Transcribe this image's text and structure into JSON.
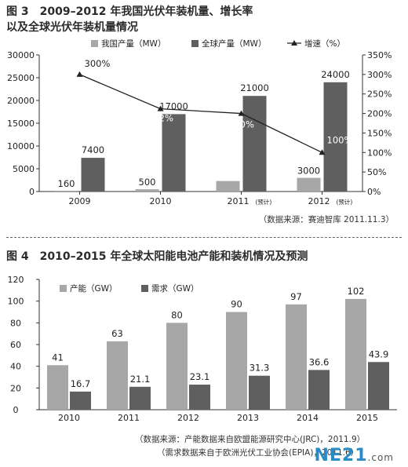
{
  "figure3": {
    "title_line1": "图 3　2009–2012 年我国光伏年装机量、增长率",
    "title_line2": "以及全球光伏年装机量情况",
    "source": "（数据来源：赛迪智库 2011.11.3）"
  },
  "figure4": {
    "title": "图 4　2010–2015 年全球太阳能电池产能和装机情况及预测",
    "source_line1": "（数据来源：产能数据来自欧盟能源研究中心(JRC)，2011.9）",
    "source_line2": "（需求数据来自于欧洲光伏工业协会(EPIA)，2011.6）"
  },
  "watermark": {
    "main": "NE21",
    "suffix": ".com"
  },
  "colors": {
    "light_bar": "#a7a7a7",
    "dark_bar": "#5f5f5f",
    "line": "#222222",
    "axis": "#333333"
  },
  "chart_data": [
    {
      "type": "bar",
      "title": "2009–2012 年我国光伏年装机量、增长率以及全球光伏年装机量情况",
      "categories": [
        "2009",
        "2010",
        "2011",
        "2012"
      ],
      "category_notes": [
        "",
        "",
        "(预计)",
        "(预计)"
      ],
      "series": [
        {
          "name": "我国产量（MW）",
          "values": [
            160,
            500,
            2300,
            3000
          ],
          "labels": [
            "160",
            "500",
            "",
            "3000"
          ],
          "axis": "left",
          "color": "#a7a7a7"
        },
        {
          "name": "全球产量（MW）",
          "values": [
            7400,
            17000,
            21000,
            24000
          ],
          "labels": [
            "7400",
            "17000",
            "21000",
            "24000"
          ],
          "axis": "left",
          "color": "#5f5f5f"
        },
        {
          "name": "增速（%）",
          "type": "line",
          "values": [
            300,
            212,
            200,
            100
          ],
          "labels": [
            "300%",
            "212%",
            "200%",
            "100%"
          ],
          "axis": "right",
          "color": "#222222"
        }
      ],
      "ylim": [
        0,
        30000
      ],
      "yticks": [
        "0",
        "5000",
        "10000",
        "15000",
        "20000",
        "25000",
        "30000"
      ],
      "y2lim": [
        0,
        350
      ],
      "y2ticks": [
        "0%",
        "50%",
        "100%",
        "150%",
        "200%",
        "250%",
        "300%",
        "350%"
      ],
      "grid": false,
      "legend": "top"
    },
    {
      "type": "bar",
      "title": "2010–2015 年全球太阳能电池产能和装机情况及预测",
      "categories": [
        "2010",
        "2011",
        "2012",
        "2013",
        "2014",
        "2015"
      ],
      "series": [
        {
          "name": "产能（GW）",
          "values": [
            41,
            63,
            80,
            90,
            97,
            102
          ],
          "labels": [
            "41",
            "63",
            "80",
            "90",
            "97",
            "102"
          ],
          "color": "#a7a7a7"
        },
        {
          "name": "需求（GW）",
          "values": [
            16.7,
            21.1,
            23.1,
            31.3,
            36.6,
            43.9
          ],
          "labels": [
            "16.7",
            "21.1",
            "23.1",
            "31.3",
            "36.6",
            "43.9"
          ],
          "color": "#5f5f5f"
        }
      ],
      "ylim": [
        0,
        120
      ],
      "yticks": [
        "0",
        "20",
        "40",
        "60",
        "80",
        "100",
        "120"
      ],
      "grid": false,
      "legend": "top-left"
    }
  ]
}
